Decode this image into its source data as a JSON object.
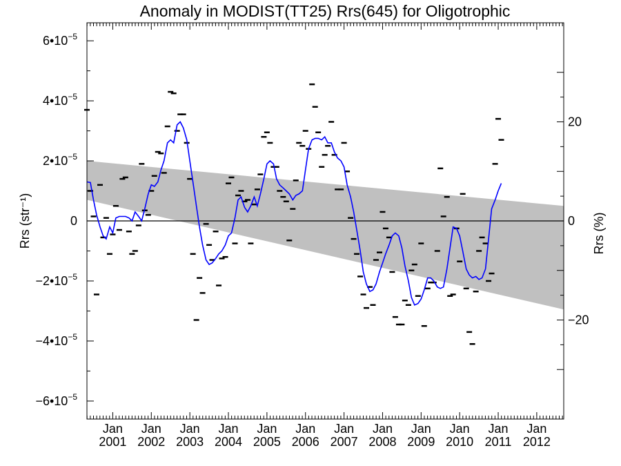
{
  "chart_data": {
    "type": "scatter",
    "title": "Anomaly in MODIST(TT25) Rrs(645) for Oligotrophic",
    "ylabel_left": "Rrs (str⁻¹)",
    "ylabel_right": "Rrs (%)",
    "xlim": [
      2000.33,
      2012.7
    ],
    "ylim": [
      -6.6e-05,
      6.6e-05
    ],
    "y2lim": [
      -40,
      40
    ],
    "x_ticks": [
      {
        "x": 2001.0,
        "month": "Jan",
        "year": "2001"
      },
      {
        "x": 2002.0,
        "month": "Jan",
        "year": "2002"
      },
      {
        "x": 2003.0,
        "month": "Jan",
        "year": "2003"
      },
      {
        "x": 2004.0,
        "month": "Jan",
        "year": "2004"
      },
      {
        "x": 2005.0,
        "month": "Jan",
        "year": "2005"
      },
      {
        "x": 2006.0,
        "month": "Jan",
        "year": "2006"
      },
      {
        "x": 2007.0,
        "month": "Jan",
        "year": "2007"
      },
      {
        "x": 2008.0,
        "month": "Jan",
        "year": "2008"
      },
      {
        "x": 2009.0,
        "month": "Jan",
        "year": "2009"
      },
      {
        "x": 2010.0,
        "month": "Jan",
        "year": "2010"
      },
      {
        "x": 2011.0,
        "month": "Jan",
        "year": "2011"
      },
      {
        "x": 2012.0,
        "month": "Jan",
        "year": "2012"
      }
    ],
    "y_ticks": [
      {
        "value": 6e-05,
        "mantissa": "6•10",
        "exp": "−5"
      },
      {
        "value": 4e-05,
        "mantissa": "4•10",
        "exp": "−5"
      },
      {
        "value": 2e-05,
        "mantissa": "2•10",
        "exp": "−5"
      },
      {
        "value": 0,
        "mantissa": "0",
        "exp": ""
      },
      {
        "value": -2e-05,
        "mantissa": "−2•10",
        "exp": "−5"
      },
      {
        "value": -4e-05,
        "mantissa": "−4•10",
        "exp": "−5"
      },
      {
        "value": -6e-05,
        "mantissa": "−6•10",
        "exp": "−5"
      }
    ],
    "y2_ticks": [
      {
        "value": 20,
        "label": "20"
      },
      {
        "value": 0,
        "label": "0"
      },
      {
        "value": -20,
        "label": "−20"
      }
    ],
    "band": {
      "upper": [
        [
          2000.33,
          2e-05
        ],
        [
          2012.7,
          5e-06
        ]
      ],
      "lower": [
        [
          2000.33,
          7e-06
        ],
        [
          2012.7,
          -2.95e-05
        ]
      ],
      "color": "#c0c0c0"
    },
    "zero_line": 0,
    "smooth_color": "#0000ff",
    "smooth": [
      [
        2000.33,
        1.3e-05
      ],
      [
        2000.42,
        1.28e-05
      ],
      [
        2000.5,
        7e-06
      ],
      [
        2000.58,
        2e-06
      ],
      [
        2000.67,
        -2e-06
      ],
      [
        2000.75,
        -5e-06
      ],
      [
        2000.83,
        -6e-06
      ],
      [
        2000.92,
        -2e-06
      ],
      [
        2001.0,
        -4e-06
      ],
      [
        2001.08,
        1e-06
      ],
      [
        2001.17,
        1.5e-06
      ],
      [
        2001.25,
        1.5e-06
      ],
      [
        2001.33,
        1.5e-06
      ],
      [
        2001.42,
        1e-06
      ],
      [
        2001.5,
        0.0
      ],
      [
        2001.58,
        3e-06
      ],
      [
        2001.67,
        1.5e-06
      ],
      [
        2001.75,
        0.0
      ],
      [
        2001.83,
        4e-06
      ],
      [
        2001.92,
        9e-06
      ],
      [
        2002.0,
        1.2e-05
      ],
      [
        2002.08,
        1.15e-05
      ],
      [
        2002.17,
        1.3e-05
      ],
      [
        2002.25,
        1.7e-05
      ],
      [
        2002.33,
        2e-05
      ],
      [
        2002.42,
        2.6e-05
      ],
      [
        2002.5,
        2.7e-05
      ],
      [
        2002.58,
        2.6e-05
      ],
      [
        2002.67,
        3.2e-05
      ],
      [
        2002.75,
        3.3e-05
      ],
      [
        2002.83,
        3.1e-05
      ],
      [
        2002.92,
        2.7e-05
      ],
      [
        2003.0,
        2e-05
      ],
      [
        2003.08,
        1.3e-05
      ],
      [
        2003.17,
        5e-06
      ],
      [
        2003.25,
        -2e-06
      ],
      [
        2003.33,
        -8e-06
      ],
      [
        2003.42,
        -1.3e-05
      ],
      [
        2003.5,
        -1.45e-05
      ],
      [
        2003.58,
        -1.4e-05
      ],
      [
        2003.67,
        -1.25e-05
      ],
      [
        2003.75,
        -1.1e-05
      ],
      [
        2003.83,
        -1e-05
      ],
      [
        2003.92,
        -8e-06
      ],
      [
        2004.0,
        -5e-06
      ],
      [
        2004.08,
        -4e-06
      ],
      [
        2004.17,
        1e-06
      ],
      [
        2004.25,
        7e-06
      ],
      [
        2004.33,
        8e-06
      ],
      [
        2004.42,
        4.5e-06
      ],
      [
        2004.5,
        3e-06
      ],
      [
        2004.58,
        5e-06
      ],
      [
        2004.67,
        8e-06
      ],
      [
        2004.75,
        5e-06
      ],
      [
        2004.83,
        9e-06
      ],
      [
        2004.92,
        1.4e-05
      ],
      [
        2005.0,
        1.9e-05
      ],
      [
        2005.08,
        2e-05
      ],
      [
        2005.17,
        1.9e-05
      ],
      [
        2005.25,
        1.4e-05
      ],
      [
        2005.33,
        1.2e-05
      ],
      [
        2005.42,
        1.1e-05
      ],
      [
        2005.5,
        1e-05
      ],
      [
        2005.58,
        9e-06
      ],
      [
        2005.67,
        7e-06
      ],
      [
        2005.75,
        8.5e-06
      ],
      [
        2005.83,
        9e-06
      ],
      [
        2005.92,
        1e-05
      ],
      [
        2006.0,
        1.7e-05
      ],
      [
        2006.08,
        2.4e-05
      ],
      [
        2006.17,
        2.7e-05
      ],
      [
        2006.25,
        2.75e-05
      ],
      [
        2006.33,
        2.75e-05
      ],
      [
        2006.42,
        2.7e-05
      ],
      [
        2006.5,
        2.8e-05
      ],
      [
        2006.58,
        2.6e-05
      ],
      [
        2006.67,
        2.6e-05
      ],
      [
        2006.75,
        2.3e-05
      ],
      [
        2006.83,
        2.1e-05
      ],
      [
        2006.92,
        2e-05
      ],
      [
        2007.0,
        1.8e-05
      ],
      [
        2007.08,
        1.2e-05
      ],
      [
        2007.17,
        8e-06
      ],
      [
        2007.25,
        3e-06
      ],
      [
        2007.33,
        -3e-06
      ],
      [
        2007.42,
        -1e-05
      ],
      [
        2007.5,
        -1.7e-05
      ],
      [
        2007.58,
        -2.1e-05
      ],
      [
        2007.67,
        -2.35e-05
      ],
      [
        2007.75,
        -2.3e-05
      ],
      [
        2007.83,
        -2.1e-05
      ],
      [
        2007.92,
        -1.7e-05
      ],
      [
        2008.0,
        -1.4e-05
      ],
      [
        2008.08,
        -1.1e-05
      ],
      [
        2008.17,
        -8e-06
      ],
      [
        2008.25,
        -5e-06
      ],
      [
        2008.33,
        -4e-06
      ],
      [
        2008.42,
        -5e-06
      ],
      [
        2008.5,
        -9e-06
      ],
      [
        2008.58,
        -1.5e-05
      ],
      [
        2008.67,
        -2e-05
      ],
      [
        2008.75,
        -2.55e-05
      ],
      [
        2008.83,
        -2.8e-05
      ],
      [
        2008.92,
        -2.75e-05
      ],
      [
        2009.0,
        -2.6e-05
      ],
      [
        2009.08,
        -2.3e-05
      ],
      [
        2009.17,
        -1.9e-05
      ],
      [
        2009.25,
        -1.9e-05
      ],
      [
        2009.33,
        -2e-05
      ],
      [
        2009.42,
        -2.2e-05
      ],
      [
        2009.5,
        -2.25e-05
      ],
      [
        2009.58,
        -2.2e-05
      ],
      [
        2009.67,
        -1.6e-05
      ],
      [
        2009.75,
        -9e-06
      ],
      [
        2009.83,
        -2e-06
      ],
      [
        2009.92,
        -2.5e-06
      ],
      [
        2010.0,
        -5e-06
      ],
      [
        2010.08,
        -1e-05
      ],
      [
        2010.17,
        -1.6e-05
      ],
      [
        2010.25,
        -1.8e-05
      ],
      [
        2010.33,
        -1.9e-05
      ],
      [
        2010.42,
        -1.85e-05
      ],
      [
        2010.5,
        -1.95e-05
      ],
      [
        2010.58,
        -1.9e-05
      ],
      [
        2010.67,
        -1.6e-05
      ],
      [
        2010.75,
        -6e-06
      ],
      [
        2010.83,
        4e-06
      ],
      [
        2010.92,
        7e-06
      ],
      [
        2011.0,
        1e-05
      ],
      [
        2011.08,
        1.25e-05
      ]
    ],
    "points": [
      [
        2000.33,
        3.7e-05
      ],
      [
        2000.42,
        1e-05
      ],
      [
        2000.5,
        1.5e-06
      ],
      [
        2000.58,
        -2.45e-05
      ],
      [
        2000.67,
        1.2e-05
      ],
      [
        2000.75,
        -5.5e-06
      ],
      [
        2000.83,
        1e-06
      ],
      [
        2000.92,
        -1.1e-05
      ],
      [
        2001.0,
        -4.5e-06
      ],
      [
        2001.08,
        5e-06
      ],
      [
        2001.17,
        -3e-06
      ],
      [
        2001.25,
        1.4e-05
      ],
      [
        2001.33,
        1.45e-05
      ],
      [
        2001.42,
        -3.5e-06
      ],
      [
        2001.5,
        -1.1e-05
      ],
      [
        2001.58,
        -1e-05
      ],
      [
        2001.67,
        -1.5e-06
      ],
      [
        2001.75,
        1.9e-05
      ],
      [
        2001.83,
        3.5e-06
      ],
      [
        2001.92,
        2e-06
      ],
      [
        2002.0,
        1e-05
      ],
      [
        2002.08,
        1.5e-05
      ],
      [
        2002.17,
        2.3e-05
      ],
      [
        2002.25,
        2.25e-05
      ],
      [
        2002.33,
        1.6e-05
      ],
      [
        2002.42,
        3.15e-05
      ],
      [
        2002.5,
        4.3e-05
      ],
      [
        2002.58,
        4.25e-05
      ],
      [
        2002.67,
        3e-05
      ],
      [
        2002.75,
        3.55e-05
      ],
      [
        2002.83,
        3.55e-05
      ],
      [
        2002.92,
        2.6e-05
      ],
      [
        2003.0,
        1.4e-05
      ],
      [
        2003.08,
        -1.1e-05
      ],
      [
        2003.17,
        -3.3e-05
      ],
      [
        2003.25,
        -1.9e-05
      ],
      [
        2003.33,
        -2.4e-05
      ],
      [
        2003.42,
        -1e-06
      ],
      [
        2003.5,
        -8e-06
      ],
      [
        2003.58,
        -1.3e-05
      ],
      [
        2003.67,
        -3.5e-06
      ],
      [
        2003.75,
        -2.15e-05
      ],
      [
        2003.83,
        -1.25e-05
      ],
      [
        2003.92,
        -1.2e-05
      ],
      [
        2004.0,
        1.25e-05
      ],
      [
        2004.08,
        1.45e-05
      ],
      [
        2004.17,
        -7.5e-06
      ],
      [
        2004.25,
        8.5e-06
      ],
      [
        2004.33,
        1e-05
      ],
      [
        2004.42,
        6.5e-06
      ],
      [
        2004.5,
        7e-06
      ],
      [
        2004.58,
        -7.5e-06
      ],
      [
        2004.67,
        5.5e-06
      ],
      [
        2004.75,
        1.05e-05
      ],
      [
        2004.83,
        1.55e-05
      ],
      [
        2004.92,
        2.8e-05
      ],
      [
        2005.0,
        2.95e-05
      ],
      [
        2005.08,
        2.6e-05
      ],
      [
        2005.17,
        1.8e-05
      ],
      [
        2005.25,
        1.8e-05
      ],
      [
        2005.33,
        1e-05
      ],
      [
        2005.42,
        8e-06
      ],
      [
        2005.5,
        6.5e-06
      ],
      [
        2005.58,
        -6.5e-06
      ],
      [
        2005.67,
        4e-06
      ],
      [
        2005.75,
        1.35e-05
      ],
      [
        2005.83,
        2.6e-05
      ],
      [
        2005.92,
        2.5e-05
      ],
      [
        2006.0,
        3e-05
      ],
      [
        2006.08,
        2.4e-05
      ],
      [
        2006.17,
        4.55e-05
      ],
      [
        2006.25,
        3.8e-05
      ],
      [
        2006.33,
        2.95e-05
      ],
      [
        2006.42,
        1.8e-05
      ],
      [
        2006.5,
        2.2e-05
      ],
      [
        2006.58,
        2.5e-05
      ],
      [
        2006.67,
        3.3e-05
      ],
      [
        2006.75,
        2.2e-05
      ],
      [
        2006.83,
        1.05e-05
      ],
      [
        2006.92,
        1.05e-05
      ],
      [
        2007.0,
        2.6e-05
      ],
      [
        2007.08,
        1.65e-05
      ],
      [
        2007.17,
        1e-06
      ],
      [
        2007.25,
        -6e-06
      ],
      [
        2007.33,
        -1.1e-05
      ],
      [
        2007.42,
        -1.85e-05
      ],
      [
        2007.5,
        -2.45e-05
      ],
      [
        2007.58,
        -2.9e-05
      ],
      [
        2007.67,
        -2.2e-05
      ],
      [
        2007.75,
        -2.8e-05
      ],
      [
        2007.83,
        -1.3e-05
      ],
      [
        2007.92,
        -1.05e-05
      ],
      [
        2008.0,
        3e-06
      ],
      [
        2008.08,
        -2.5e-06
      ],
      [
        2008.17,
        -5.5e-06
      ],
      [
        2008.25,
        -1.7e-05
      ],
      [
        2008.33,
        -3.2e-05
      ],
      [
        2008.42,
        -3.45e-05
      ],
      [
        2008.5,
        -3.45e-05
      ],
      [
        2008.58,
        -2.65e-05
      ],
      [
        2008.67,
        -2.8e-05
      ],
      [
        2008.75,
        -1.65e-05
      ],
      [
        2008.83,
        -1.45e-05
      ],
      [
        2008.92,
        -2.5e-05
      ],
      [
        2009.0,
        -7.5e-06
      ],
      [
        2009.08,
        -3.5e-05
      ],
      [
        2009.17,
        -2.25e-05
      ],
      [
        2009.25,
        -2.05e-05
      ],
      [
        2009.33,
        -2.05e-05
      ],
      [
        2009.42,
        -1e-05
      ],
      [
        2009.5,
        1.75e-05
      ],
      [
        2009.58,
        1.5e-06
      ],
      [
        2009.67,
        8e-06
      ],
      [
        2009.75,
        -2.5e-05
      ],
      [
        2009.83,
        -2.45e-05
      ],
      [
        2009.92,
        -2.5e-06
      ],
      [
        2010.0,
        -1.35e-05
      ],
      [
        2010.08,
        9e-06
      ],
      [
        2010.17,
        -2.25e-05
      ],
      [
        2010.25,
        -3.7e-05
      ],
      [
        2010.33,
        -4.1e-05
      ],
      [
        2010.42,
        -2.35e-05
      ],
      [
        2010.5,
        -1e-05
      ],
      [
        2010.58,
        -5.5e-06
      ],
      [
        2010.67,
        -7.5e-06
      ],
      [
        2010.75,
        -2e-05
      ],
      [
        2010.83,
        -1.75e-05
      ],
      [
        2010.92,
        1.9e-05
      ],
      [
        2011.0,
        3.4e-05
      ],
      [
        2011.08,
        2.7e-05
      ]
    ]
  }
}
